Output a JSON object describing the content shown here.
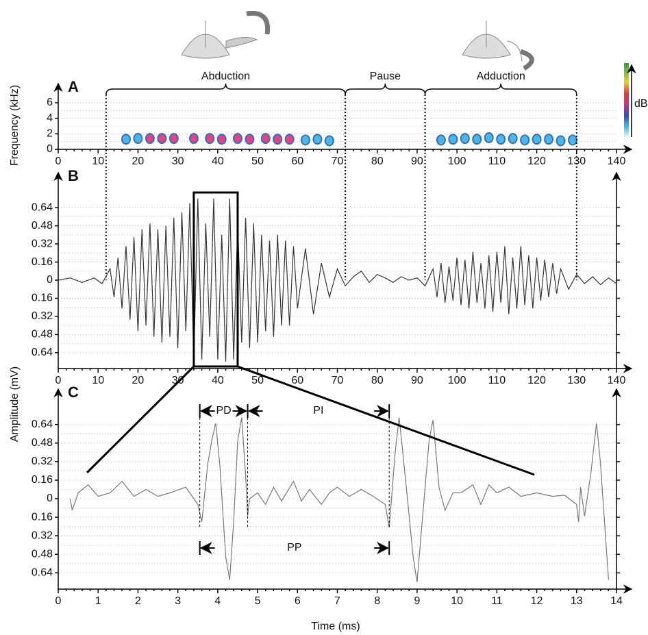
{
  "chart_data": [
    {
      "type": "scatter",
      "label": "A",
      "y_label": "Frequency (kHz)",
      "xlim": [
        0,
        140
      ],
      "xticks": [
        0,
        10,
        20,
        30,
        40,
        50,
        60,
        70,
        80,
        90,
        100,
        110,
        120,
        130,
        140
      ],
      "ylim": [
        0,
        6
      ],
      "yticks": [
        0,
        2,
        4,
        6
      ],
      "grid": true,
      "series": [
        {
          "color": "#e0307a",
          "x": [
            23,
            26,
            29,
            34,
            38,
            41,
            45,
            48,
            52,
            55,
            58
          ],
          "values": [
            1.4,
            1.4,
            1.4,
            1.4,
            1.4,
            1.3,
            1.4,
            1.3,
            1.4,
            1.3,
            1.3
          ]
        },
        {
          "color": "#3ab0e0",
          "x": [
            17,
            20,
            62,
            65,
            68,
            96,
            99,
            102,
            105,
            108,
            111,
            114,
            117,
            120,
            123,
            126,
            129
          ],
          "values": [
            1.3,
            1.4,
            1.2,
            1.3,
            1.1,
            1.2,
            1.3,
            1.4,
            1.3,
            1.5,
            1.3,
            1.4,
            1.2,
            1.3,
            1.3,
            1.1,
            1.2
          ]
        }
      ],
      "annotations": [
        {
          "text": "Abduction",
          "x0": 12,
          "x1": 72
        },
        {
          "text": "Pause",
          "x0": 72,
          "x1": 92
        },
        {
          "text": "Adduction",
          "x0": 92,
          "x1": 130
        }
      ],
      "colorbar_label": "dB"
    },
    {
      "type": "line",
      "label": "B",
      "y_label": "Amplitude (mV)",
      "right_axis": true,
      "xlim": [
        0,
        140
      ],
      "xticks": [
        0,
        10,
        20,
        30,
        40,
        50,
        60,
        70,
        80,
        90,
        100,
        110,
        120,
        130,
        140
      ],
      "ylim": [
        -0.78,
        0.78
      ],
      "yticks": [
        0.64,
        0.48,
        0.32,
        0.16,
        0,
        {
          "value": -0.16,
          "label": "0.16"
        },
        {
          "value": -0.32,
          "label": "0.32"
        },
        {
          "value": -0.48,
          "label": "0.48"
        },
        {
          "value": -0.64,
          "label": "0.64"
        }
      ],
      "grid": true,
      "color": "#333333",
      "zoom_box": [
        34,
        45
      ],
      "x": [
        0,
        3,
        6,
        9,
        11,
        13,
        14,
        15,
        16,
        17,
        18,
        19,
        20,
        21,
        22,
        23,
        24,
        25,
        26,
        27,
        28,
        29,
        30,
        31,
        32,
        33,
        34,
        35,
        36,
        37,
        38,
        39,
        40,
        41,
        42,
        43,
        44,
        45,
        46,
        47,
        48,
        49,
        50,
        51,
        52,
        53,
        54,
        55,
        56,
        57,
        58,
        59,
        60,
        62,
        64,
        66,
        68,
        70,
        72,
        74,
        76,
        78,
        80,
        82,
        84,
        86,
        88,
        90,
        92,
        94,
        95,
        96,
        97,
        98,
        99,
        100,
        101,
        102,
        103,
        104,
        105,
        106,
        107,
        108,
        109,
        110,
        111,
        112,
        113,
        114,
        115,
        116,
        117,
        118,
        119,
        120,
        121,
        122,
        123,
        124,
        125,
        126,
        128,
        130,
        132,
        134,
        136,
        138,
        140
      ],
      "values": [
        0,
        0.02,
        -0.02,
        0.02,
        -0.03,
        0.1,
        -0.15,
        0.2,
        -0.25,
        0.3,
        -0.35,
        0.38,
        -0.45,
        0.45,
        -0.4,
        0.5,
        -0.5,
        0.45,
        -0.55,
        0.48,
        -0.5,
        0.55,
        -0.6,
        0.6,
        -0.45,
        0.68,
        -0.7,
        0.72,
        -0.7,
        0.5,
        -0.5,
        0.72,
        -0.7,
        0.4,
        -0.72,
        0.72,
        -0.7,
        0.5,
        -0.55,
        0.55,
        -0.6,
        0.5,
        -0.55,
        0.4,
        -0.45,
        0.35,
        -0.5,
        0.4,
        -0.4,
        0.35,
        -0.4,
        0.3,
        -0.25,
        0.28,
        -0.3,
        0.15,
        -0.15,
        0.1,
        -0.05,
        0.03,
        0.08,
        -0.02,
        0.05,
        0.02,
        -0.02,
        0.03,
        0,
        0.02,
        -0.05,
        0.1,
        -0.15,
        0.15,
        -0.2,
        0.12,
        -0.18,
        0.2,
        -0.22,
        0.18,
        -0.25,
        0.25,
        -0.2,
        0.15,
        -0.25,
        0.22,
        -0.28,
        0.25,
        -0.2,
        0.3,
        -0.3,
        0.2,
        -0.25,
        0.3,
        -0.22,
        0.22,
        -0.25,
        0.2,
        -0.18,
        0.18,
        -0.15,
        0.15,
        -0.12,
        0.1,
        -0.08,
        0.05,
        -0.03,
        0.03,
        -0.04,
        0.02,
        -0.03
      ]
    },
    {
      "type": "line",
      "label": "C",
      "x_label": "Time (ms)",
      "right_axis": true,
      "xlim": [
        0,
        14
      ],
      "xticks": [
        0,
        1,
        2,
        3,
        4,
        5,
        6,
        7,
        8,
        9,
        10,
        11,
        12,
        13,
        14
      ],
      "ylim": [
        -0.78,
        0.78
      ],
      "yticks": [
        0.64,
        0.48,
        0.32,
        0.16,
        0,
        {
          "value": -0.16,
          "label": "0.16"
        },
        {
          "value": -0.32,
          "label": "0.32"
        },
        {
          "value": -0.48,
          "label": "0.48"
        },
        {
          "value": -0.64,
          "label": "0.64"
        }
      ],
      "grid": true,
      "color": "#777777",
      "annotations": [
        {
          "text": "PD",
          "x0": 3.55,
          "x1": 4.75
        },
        {
          "text": "PI",
          "x0": 4.75,
          "x1": 8.3
        },
        {
          "text": "PP",
          "x0": 3.55,
          "x1": 8.3
        }
      ],
      "x": [
        0.3,
        0.35,
        0.5,
        0.75,
        1,
        1.3,
        1.6,
        1.9,
        2.2,
        2.5,
        2.8,
        3.2,
        3.5,
        3.6,
        3.75,
        3.85,
        3.95,
        4.05,
        4.2,
        4.3,
        4.4,
        4.5,
        4.6,
        4.7,
        4.75,
        4.8,
        5,
        5.2,
        5.4,
        5.6,
        5.9,
        6.1,
        6.3,
        6.6,
        6.8,
        7,
        7.3,
        7.6,
        7.9,
        8.2,
        8.3,
        8.45,
        8.55,
        8.7,
        8.9,
        9,
        9.15,
        9.3,
        9.4,
        9.55,
        9.7,
        9.9,
        10.1,
        10.4,
        10.6,
        10.8,
        11,
        11.3,
        11.6,
        12,
        12.4,
        12.7,
        13,
        13.05,
        13.1,
        13.2,
        13.35,
        13.5,
        13.6,
        13.7,
        13.8
      ],
      "values": [
        0,
        -0.1,
        0.05,
        0.12,
        0.02,
        0.05,
        0.15,
        0.02,
        0.08,
        0.02,
        0.05,
        0.1,
        -0.05,
        -0.2,
        0.3,
        0.5,
        0.65,
        0.3,
        -0.5,
        -0.7,
        -0.2,
        0.5,
        0.7,
        0.2,
        -0.15,
        0,
        0.05,
        -0.05,
        0.1,
        -0.02,
        0.15,
        -0.02,
        0.08,
        -0.05,
        0.05,
        0.1,
        0.02,
        0.08,
        0.02,
        -0.05,
        -0.25,
        0.4,
        0.7,
        0.2,
        -0.5,
        -0.72,
        -0.1,
        0.5,
        0.68,
        0.1,
        -0.1,
        0.05,
        0.05,
        0.12,
        -0.05,
        0.12,
        0.05,
        0.1,
        0.02,
        0.05,
        0.02,
        0.03,
        -0.05,
        -0.2,
        0.1,
        -0.15,
        0.2,
        0.65,
        0.3,
        -0.2,
        -0.7
      ]
    }
  ]
}
